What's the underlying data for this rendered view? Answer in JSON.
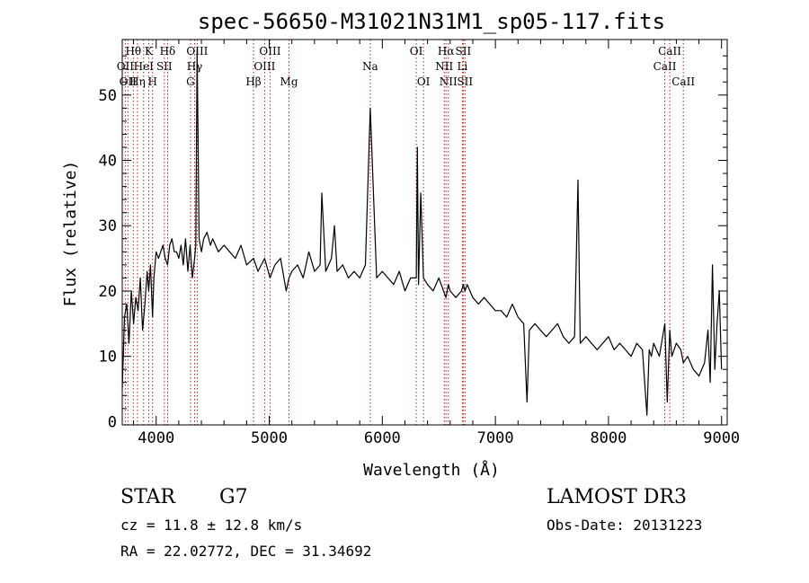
{
  "chart_data": {
    "type": "line",
    "title": "spec-56650-M31021N31M1_sp05-117.fits",
    "xlabel": "Wavelength (Å)",
    "ylabel": "Flux (relative)",
    "xlim": [
      3700,
      9050
    ],
    "ylim": [
      -0.5,
      58.5
    ],
    "xticks": [
      4000,
      5000,
      6000,
      7000,
      8000,
      9000
    ],
    "yticks": [
      0,
      10,
      20,
      30,
      40,
      50
    ],
    "series": [
      {
        "name": "flux",
        "color": "#000000",
        "x": [
          3700,
          3720,
          3740,
          3760,
          3780,
          3800,
          3820,
          3840,
          3860,
          3880,
          3900,
          3920,
          3934,
          3950,
          3968,
          3980,
          4000,
          4020,
          4040,
          4060,
          4080,
          4101,
          4120,
          4140,
          4160,
          4180,
          4200,
          4220,
          4240,
          4260,
          4280,
          4300,
          4320,
          4340,
          4350,
          4362,
          4380,
          4400,
          4420,
          4450,
          4480,
          4500,
          4550,
          4600,
          4650,
          4700,
          4750,
          4800,
          4861,
          4900,
          4959,
          5007,
          5050,
          5100,
          5150,
          5175,
          5200,
          5250,
          5300,
          5350,
          5400,
          5450,
          5465,
          5500,
          5550,
          5577,
          5600,
          5650,
          5700,
          5750,
          5800,
          5850,
          5893,
          5950,
          6000,
          6050,
          6100,
          6150,
          6200,
          6250,
          6300,
          6310,
          6320,
          6340,
          6364,
          6400,
          6450,
          6500,
          6563,
          6584,
          6600,
          6650,
          6700,
          6716,
          6731,
          6750,
          6800,
          6850,
          6900,
          6950,
          7000,
          7050,
          7100,
          7150,
          7200,
          7250,
          7280,
          7300,
          7350,
          7400,
          7450,
          7500,
          7550,
          7600,
          7650,
          7700,
          7730,
          7750,
          7800,
          7850,
          7900,
          7950,
          8000,
          8050,
          8100,
          8150,
          8200,
          8250,
          8300,
          8340,
          8360,
          8380,
          8400,
          8450,
          8498,
          8520,
          8542,
          8560,
          8600,
          8640,
          8662,
          8700,
          8750,
          8800,
          8850,
          8880,
          8900,
          8920,
          8940,
          8960,
          8980,
          9000
        ],
        "values": [
          5,
          16,
          18,
          12,
          20,
          15,
          19,
          17,
          22,
          14,
          18,
          23,
          20,
          24,
          16,
          22,
          26,
          25,
          26,
          27,
          25,
          24,
          27,
          28,
          26,
          26,
          25,
          27,
          24,
          28,
          23,
          27,
          22,
          25,
          27,
          57,
          28,
          26,
          28,
          29,
          27,
          28,
          26,
          27,
          26,
          25,
          27,
          24,
          25,
          23,
          25,
          22,
          24,
          25,
          20,
          22,
          23,
          24,
          22,
          26,
          23,
          24,
          35,
          23,
          25,
          30,
          23,
          24,
          22,
          23,
          22,
          24,
          48,
          22,
          23,
          22,
          21,
          23,
          20,
          22,
          22,
          42,
          21,
          35,
          22,
          21,
          20,
          22,
          19,
          21,
          20,
          19,
          20,
          21,
          20,
          21,
          19,
          18,
          19,
          18,
          17,
          17,
          16,
          18,
          16,
          15,
          3,
          14,
          15,
          14,
          13,
          14,
          15,
          13,
          12,
          13,
          37,
          12,
          13,
          12,
          11,
          12,
          13,
          11,
          12,
          11,
          10,
          12,
          11,
          1,
          11,
          10,
          12,
          10,
          15,
          3,
          14,
          10,
          12,
          11,
          9,
          10,
          8,
          7,
          9,
          14,
          6,
          24,
          8,
          15,
          20,
          8
        ]
      }
    ],
    "line_markers": [
      {
        "wavelength": 3727,
        "label": "OII",
        "row": 2
      },
      {
        "wavelength": 3750,
        "label": "OII",
        "row": 3
      },
      {
        "wavelength": 3798,
        "label": "Hθ",
        "row": 1
      },
      {
        "wavelength": 3835,
        "label": "Hη",
        "row": 3
      },
      {
        "wavelength": 3889,
        "label": "HeI",
        "row": 2
      },
      {
        "wavelength": 3934,
        "label": "K",
        "row": 1
      },
      {
        "wavelength": 3968,
        "label": "H",
        "row": 3
      },
      {
        "wavelength": 4072,
        "label": "SII",
        "row": 2
      },
      {
        "wavelength": 4101,
        "label": "Hδ",
        "row": 1
      },
      {
        "wavelength": 4304,
        "label": "G",
        "row": 3
      },
      {
        "wavelength": 4340,
        "label": "Hγ",
        "row": 2
      },
      {
        "wavelength": 4363,
        "label": "OIII",
        "row": 1
      },
      {
        "wavelength": 4861,
        "label": "Hβ",
        "row": 3
      },
      {
        "wavelength": 4959,
        "label": "OIII",
        "row": 2
      },
      {
        "wavelength": 5007,
        "label": "OIII",
        "row": 1
      },
      {
        "wavelength": 5175,
        "label": "Mg",
        "row": 3
      },
      {
        "wavelength": 5893,
        "label": "Na",
        "row": 2
      },
      {
        "wavelength": 6300,
        "label": "OI",
        "row": 1
      },
      {
        "wavelength": 6364,
        "label": "OI",
        "row": 3
      },
      {
        "wavelength": 6548,
        "label": "NII",
        "row": 2
      },
      {
        "wavelength": 6563,
        "label": "Hα",
        "row": 1
      },
      {
        "wavelength": 6584,
        "label": "NII",
        "row": 3
      },
      {
        "wavelength": 6708,
        "label": "Li",
        "row": 2
      },
      {
        "wavelength": 6716,
        "label": "SII",
        "row": 1
      },
      {
        "wavelength": 6731,
        "label": "SII",
        "row": 3
      },
      {
        "wavelength": 8498,
        "label": "CaII",
        "row": 2
      },
      {
        "wavelength": 8542,
        "label": "CaII",
        "row": 1
      },
      {
        "wavelength": 8662,
        "label": "CaII",
        "row": 3
      }
    ],
    "marker_color": "#b22222"
  },
  "info": {
    "class": "STAR",
    "subclass": "G7",
    "survey": "LAMOST DR3",
    "cz": "cz = 11.8 ± 12.8 km/s",
    "obs_date": "Obs-Date: 20131223",
    "coords": "RA =  22.02772, DEC =  31.34692"
  }
}
